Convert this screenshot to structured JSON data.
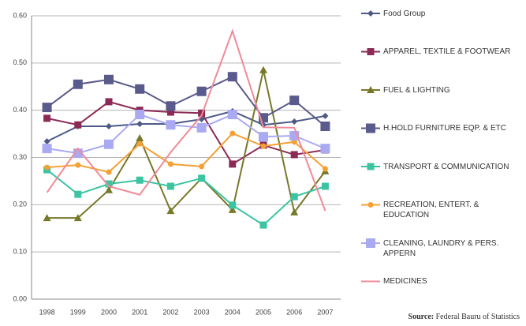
{
  "chart_data": {
    "type": "line",
    "categories": [
      "1998",
      "1999",
      "2000",
      "2001",
      "2002",
      "2003",
      "2004",
      "2005",
      "2006",
      "2007"
    ],
    "ylim": [
      0,
      0.6
    ],
    "yticks": [
      {
        "value": 0,
        "label": "0.00"
      },
      {
        "value": 0.1,
        "label": "0.10"
      },
      {
        "value": 0.2,
        "label": "0.20"
      },
      {
        "value": 0.3,
        "label": "0.30"
      },
      {
        "value": 0.4,
        "label": "0.40"
      },
      {
        "value": 0.5,
        "label": "0.50"
      },
      {
        "value": 0.6,
        "label": "0.60"
      }
    ],
    "grid": true,
    "legend": "right",
    "series": [
      {
        "name": "Food Group",
        "color": "#4e5a86",
        "marker": "diamond",
        "values": [
          0.334,
          0.366,
          0.366,
          0.371,
          0.371,
          0.381,
          0.398,
          0.369,
          0.376,
          0.388
        ]
      },
      {
        "name": "APPAREL, TEXTILE & FOOTWEAR",
        "color": "#8b2a55",
        "marker": "square",
        "values": [
          0.383,
          0.369,
          0.418,
          0.4,
          0.396,
          0.394,
          0.286,
          0.326,
          0.306,
          0.316
        ]
      },
      {
        "name": "FUEL & LIGHTING",
        "color": "#78782a",
        "marker": "triangle",
        "values": [
          0.172,
          0.172,
          0.231,
          0.341,
          0.187,
          0.256,
          0.189,
          0.485,
          0.184,
          0.271
        ]
      },
      {
        "name": "H.HOLD FURNITURE EQP. & ETC",
        "color": "#5a5a8c",
        "marker": "bigsquare",
        "values": [
          0.406,
          0.455,
          0.465,
          0.445,
          0.409,
          0.44,
          0.471,
          0.384,
          0.421,
          0.366
        ]
      },
      {
        "name": "TRANSPORT & COMMUNICATION",
        "color": "#3cc4a2",
        "marker": "square",
        "values": [
          0.274,
          0.222,
          0.244,
          0.252,
          0.239,
          0.256,
          0.199,
          0.157,
          0.217,
          0.239
        ]
      },
      {
        "name": "RECREATION, ENTERT. & EDUCATION",
        "color": "#f5a033",
        "marker": "circle",
        "values": [
          0.279,
          0.284,
          0.269,
          0.329,
          0.286,
          0.281,
          0.351,
          0.324,
          0.333,
          0.276
        ]
      },
      {
        "name": "CLEANING, LAUNDRY & PERS. APPERN",
        "color": "#aaaaf2",
        "marker": "bigsquare",
        "values": [
          0.319,
          0.309,
          0.328,
          0.391,
          0.369,
          0.363,
          0.391,
          0.344,
          0.346,
          0.319
        ]
      },
      {
        "name": "MEDICINES",
        "color": "#f08a98",
        "marker": "none",
        "values": [
          0.226,
          0.319,
          0.239,
          0.221,
          0.311,
          0.389,
          0.568,
          0.364,
          0.363,
          0.187
        ]
      }
    ],
    "source": {
      "label": "Source:",
      "text": "Federal Bauru of Statistics"
    }
  }
}
